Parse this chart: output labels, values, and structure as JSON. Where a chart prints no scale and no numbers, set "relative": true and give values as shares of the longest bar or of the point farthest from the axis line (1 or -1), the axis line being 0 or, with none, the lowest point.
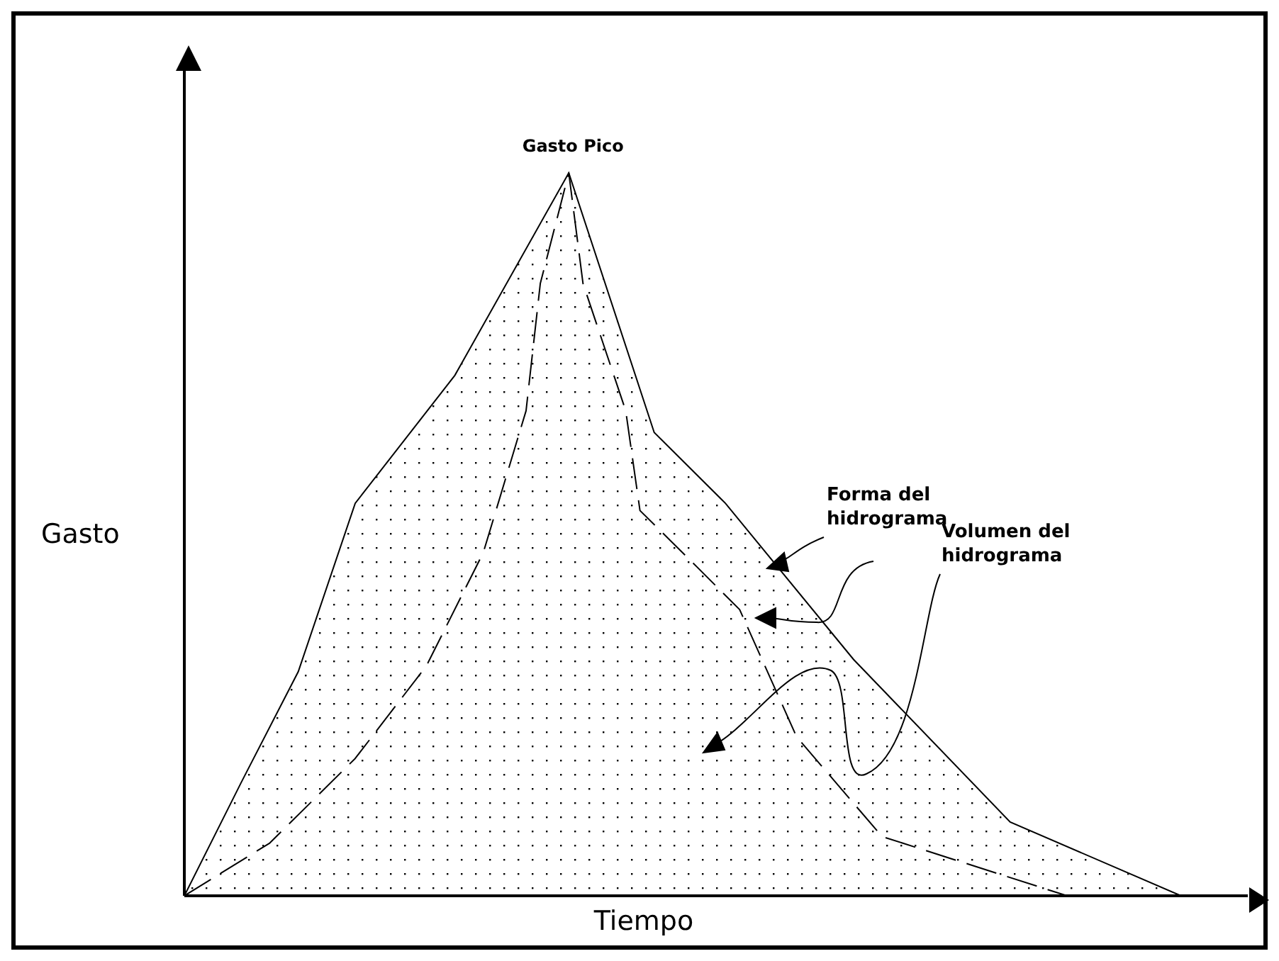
{
  "chart_data": {
    "type": "area",
    "relative": true,
    "xlabel": "Tiempo",
    "ylabel": "Gasto",
    "marker": "none",
    "annotations": [
      "Gasto Pico",
      "Forma del hidrograma",
      "Volumen del hidrograma"
    ],
    "categories": [
      null,
      null,
      null,
      null,
      null,
      null,
      null,
      null,
      null,
      null,
      null,
      null,
      null,
      null,
      null,
      null,
      null,
      null,
      null,
      null,
      null,
      null,
      null,
      null,
      null,
      null,
      null,
      null,
      null,
      null,
      null,
      null,
      null,
      null,
      null,
      null,
      null,
      null,
      null,
      null,
      null,
      null,
      null,
      null,
      null,
      null,
      null,
      null,
      null,
      null,
      null,
      null,
      null,
      null,
      null,
      null,
      null,
      null,
      null,
      null,
      null,
      null,
      null,
      null,
      null,
      null,
      null,
      null,
      null,
      null,
      null
    ],
    "series": [
      {
        "color": "#000000",
        "values": [
          0,
          null,
          null,
          null,
          0.157,
          null,
          null,
          null,
          0.31,
          null,
          null,
          null,
          0.543,
          null,
          null,
          null,
          null,
          null,
          null,
          0.72,
          null,
          null,
          null,
          null,
          null,
          null,
          null,
          1,
          null,
          null,
          null,
          null,
          null,
          0.641,
          null,
          null,
          null,
          null,
          0.543,
          null,
          null,
          null,
          null,
          null,
          null,
          null,
          null,
          0.327,
          null,
          null,
          null,
          null,
          null,
          null,
          null,
          null,
          null,
          null,
          0.102,
          null,
          null,
          null,
          null,
          null,
          null,
          null,
          null,
          null,
          null,
          null,
          0
        ]
      },
      {
        "type": "line",
        "color": "#000000",
        "line_style": "dashed",
        "values": [
          0,
          null,
          null,
          null,
          null,
          null,
          0.073,
          null,
          null,
          null,
          null,
          null,
          0.19,
          null,
          null,
          null,
          null,
          0.318,
          null,
          null,
          null,
          0.475,
          null,
          null,
          0.671,
          0.847,
          null,
          1,
          0.847,
          null,
          null,
          0.671,
          0.533,
          null,
          null,
          null,
          0.455,
          null,
          null,
          0.396,
          null,
          null,
          null,
          0.22,
          null,
          null,
          null,
          null,
          null,
          0.082,
          null,
          null,
          null,
          null,
          null,
          null,
          null,
          null,
          null,
          null,
          null,
          null,
          0,
          null,
          null,
          null,
          null,
          null,
          null,
          null,
          null
        ]
      }
    ]
  }
}
